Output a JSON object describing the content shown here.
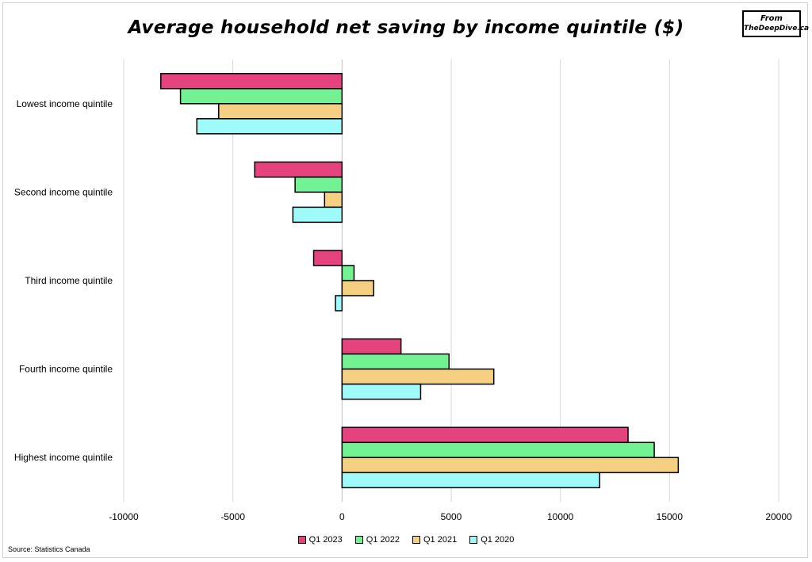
{
  "header": {
    "title": "Average household net saving by income quintile ($)",
    "badge_line1": "From",
    "badge_line2": "TheDeepDive.ca"
  },
  "source": "Source: Statistics Canada",
  "colors": {
    "Q1 2023": "#e5437e",
    "Q1 2022": "#72f293",
    "Q1 2021": "#f5cf82",
    "Q1 2020": "#9ffafa",
    "grid": "#d9d9d9",
    "axis": "#bfbfbf"
  },
  "chart_data": {
    "type": "bar",
    "orientation": "horizontal",
    "title": "Average household net saving by income quintile ($)",
    "categories": [
      "Lowest income quintile",
      "Second income quintile",
      "Third income quintile",
      "Fourth income quintile",
      "Highest income quintile"
    ],
    "series": [
      {
        "name": "Q1 2023",
        "values": [
          -8300,
          -4000,
          -1300,
          2700,
          13100
        ]
      },
      {
        "name": "Q1 2022",
        "values": [
          -7400,
          -2150,
          550,
          4900,
          14300
        ]
      },
      {
        "name": "Q1 2021",
        "values": [
          -5650,
          -800,
          1450,
          6950,
          15400
        ]
      },
      {
        "name": "Q1 2020",
        "values": [
          -6650,
          -2250,
          -300,
          3600,
          11800
        ]
      }
    ],
    "xlim": [
      -10000,
      20000
    ],
    "xticks": [
      -10000,
      -5000,
      0,
      5000,
      10000,
      15000,
      20000
    ],
    "xtick_labels": [
      "-10000",
      "-5000",
      "0",
      "5000",
      "10000",
      "15000",
      "20000"
    ],
    "grid": "vertical",
    "legend_position": "bottom"
  }
}
